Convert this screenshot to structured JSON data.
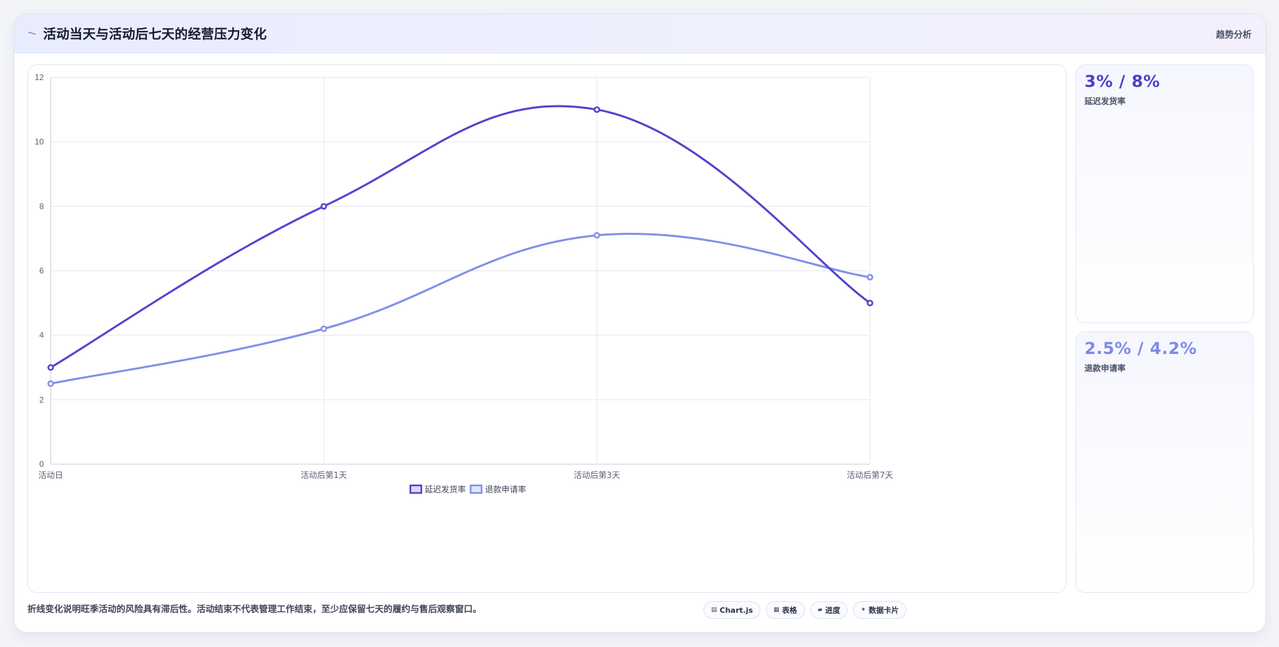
{
  "header": {
    "title": "活动当天与活动后七天的经营压力变化",
    "tag": "趋势分析",
    "icon": "pin-icon"
  },
  "chart_data": {
    "type": "line",
    "categories": [
      "活动日",
      "活动后第1天",
      "活动后第3天",
      "活动后第7天"
    ],
    "series": [
      {
        "name": "延迟发货率",
        "values": [
          3,
          8,
          11,
          5
        ],
        "color": "#5144cc"
      },
      {
        "name": "退款申请率",
        "values": [
          2.5,
          4.2,
          7.1,
          5.8
        ],
        "color": "#8190e8"
      }
    ],
    "ylim": [
      0,
      12
    ],
    "yticks": [
      0,
      2,
      4,
      6,
      8,
      10,
      12
    ],
    "grid": true,
    "legend": "bottom",
    "smooth": true
  },
  "kpis": [
    {
      "value": "3% / 8%",
      "label": "延迟发货率",
      "color": "#4f3fd0"
    },
    {
      "value": "2.5% / 4.2%",
      "label": "退款申请率",
      "color": "#7f8ae6"
    }
  ],
  "footer": {
    "note": "折线变化说明旺季活动的风险具有滞后性。活动结束不代表管理工作结束，至少应保留七天的履约与售后观察窗口。",
    "pills": [
      {
        "icon": "▤",
        "label": "Chart.js",
        "name": "chartjs-pill"
      },
      {
        "icon": "▦",
        "label": "表格",
        "name": "table-pill"
      },
      {
        "icon": "▰",
        "label": "进度",
        "name": "progress-pill"
      },
      {
        "icon": "✦",
        "label": "数据卡片",
        "name": "data-card-pill"
      }
    ]
  }
}
